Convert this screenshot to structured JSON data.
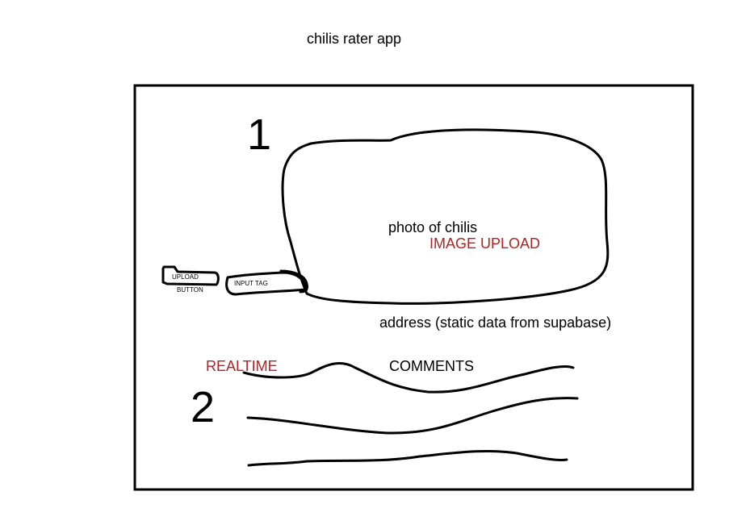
{
  "title": "chilis rater app",
  "sections": {
    "one": "1",
    "two": "2"
  },
  "photo": {
    "label": "photo of chilis",
    "upload_label": "IMAGE UPLOAD"
  },
  "upload_button": {
    "line1": "UPLOAD",
    "line2": "BUTTON"
  },
  "input_tag": "INPUT TAG",
  "address": "address (static data from supabase)",
  "comments": {
    "realtime": "REALTIME",
    "label": "COMMENTS"
  },
  "colors": {
    "ink": "#000000",
    "accent_red": "#b22222"
  }
}
